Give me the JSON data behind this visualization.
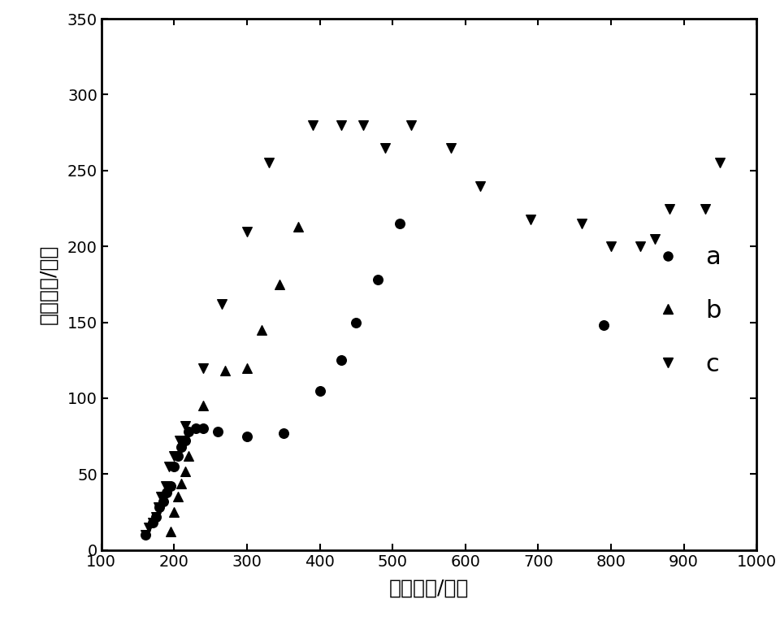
{
  "title": "",
  "xlabel": "电阵实部/欧姆",
  "ylabel": "电阵虚部/欧姆",
  "xlim": [
    100,
    1000
  ],
  "ylim": [
    0,
    350
  ],
  "xticks": [
    100,
    200,
    300,
    400,
    500,
    600,
    700,
    800,
    900,
    1000
  ],
  "yticks": [
    0,
    50,
    100,
    150,
    200,
    250,
    300,
    350
  ],
  "series_a": {
    "label": "a",
    "marker": "o",
    "x": [
      160,
      170,
      175,
      180,
      185,
      190,
      195,
      200,
      205,
      210,
      215,
      220,
      230,
      240,
      260,
      300,
      350,
      400,
      430,
      450,
      480,
      510,
      790
    ],
    "y": [
      10,
      18,
      22,
      28,
      32,
      38,
      42,
      55,
      62,
      68,
      72,
      78,
      80,
      80,
      78,
      75,
      77,
      105,
      125,
      150,
      178,
      215,
      148
    ]
  },
  "series_b": {
    "label": "b",
    "marker": "^",
    "x": [
      195,
      200,
      205,
      210,
      215,
      220,
      240,
      270,
      300,
      320,
      345,
      370
    ],
    "y": [
      12,
      25,
      35,
      44,
      52,
      62,
      95,
      118,
      120,
      145,
      175,
      213
    ]
  },
  "series_c": {
    "label": "c",
    "marker": "v",
    "x": [
      160,
      165,
      170,
      175,
      178,
      182,
      188,
      193,
      200,
      207,
      215,
      240,
      265,
      300,
      330,
      390,
      430,
      460,
      490,
      525,
      580,
      620,
      690,
      760,
      800,
      840,
      860,
      880,
      930,
      950
    ],
    "y": [
      10,
      15,
      18,
      22,
      28,
      35,
      42,
      55,
      62,
      72,
      82,
      120,
      162,
      210,
      255,
      280,
      280,
      280,
      265,
      280,
      265,
      240,
      218,
      215,
      200,
      200,
      205,
      225,
      225,
      255
    ]
  },
  "background_color": "#ffffff",
  "marker_size": 70,
  "marker_color": "#000000",
  "font_size_label": 18,
  "font_size_tick": 14,
  "font_size_legend": 22
}
